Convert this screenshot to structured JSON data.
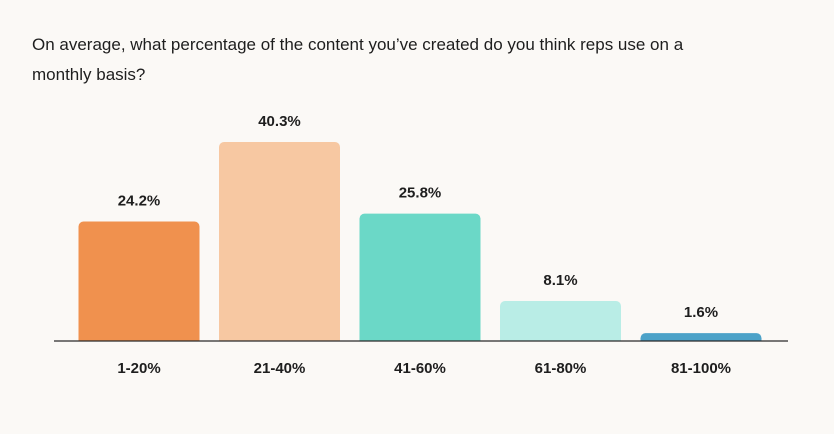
{
  "chart_data": {
    "type": "bar",
    "title": "On average, what percentage of the content you’ve created do you think reps use on a monthly basis?",
    "xlabel": "",
    "ylabel": "",
    "categories": [
      "1-20%",
      "21-40%",
      "41-60%",
      "61-80%",
      "81-100%"
    ],
    "values": [
      24.2,
      40.3,
      25.8,
      8.1,
      1.6
    ],
    "value_labels": [
      "24.2%",
      "40.3%",
      "25.8%",
      "8.1%",
      "1.6%"
    ],
    "ylim": [
      0,
      40.3
    ],
    "grid": false,
    "legend": "none",
    "colors": [
      "#f0914e",
      "#f7c8a2",
      "#6bd8c7",
      "#b9ede6",
      "#4ca2c8"
    ]
  }
}
